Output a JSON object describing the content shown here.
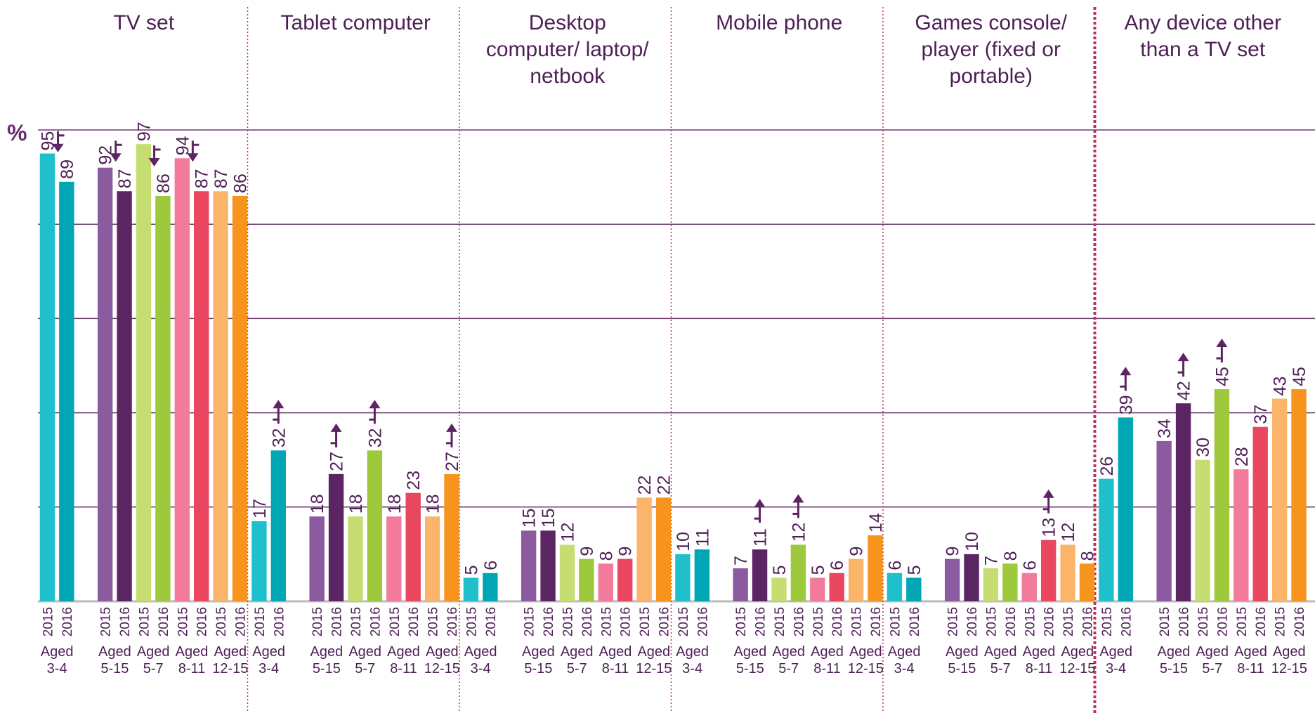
{
  "chart_data": {
    "type": "bar",
    "ylabel": "%",
    "ylim": [
      0,
      100
    ],
    "yticks": [
      0,
      20,
      40,
      60,
      80,
      100
    ],
    "grid": true,
    "years": [
      "2015",
      "2016"
    ],
    "age_groups": [
      {
        "label": "Aged 3-4",
        "colors": [
          "#1fc0cc",
          "#00a6b4"
        ]
      },
      {
        "label": "Aged 5-15",
        "colors": [
          "#8c5a9e",
          "#5b2462"
        ]
      },
      {
        "label": "Aged 5-7",
        "colors": [
          "#c6dd72",
          "#9ec93c"
        ]
      },
      {
        "label": "Aged 8-11",
        "colors": [
          "#f27b9b",
          "#e8475f"
        ]
      },
      {
        "label": "Aged 12-15",
        "colors": [
          "#fbb56b",
          "#f7941e"
        ]
      }
    ],
    "panels": [
      {
        "name": "TV set",
        "values": [
          95,
          89,
          92,
          87,
          97,
          86,
          94,
          87,
          87,
          86
        ],
        "changes": [
          "down",
          "down",
          "down",
          "down",
          null
        ]
      },
      {
        "name": "Tablet computer",
        "values": [
          17,
          32,
          18,
          27,
          18,
          32,
          18,
          23,
          18,
          27
        ],
        "changes": [
          "up",
          "up",
          "up",
          null,
          "up"
        ]
      },
      {
        "name": "Desktop computer/ laptop/ netbook",
        "values": [
          5,
          6,
          15,
          15,
          12,
          9,
          8,
          9,
          22,
          22
        ],
        "changes": [
          null,
          null,
          null,
          null,
          null
        ]
      },
      {
        "name": "Mobile phone",
        "values": [
          10,
          11,
          7,
          11,
          5,
          12,
          5,
          6,
          9,
          14
        ],
        "changes": [
          null,
          "up",
          "up",
          null,
          null
        ]
      },
      {
        "name": "Games console/ player (fixed or portable)",
        "values": [
          6,
          5,
          9,
          10,
          7,
          8,
          6,
          13,
          12,
          8
        ],
        "changes": [
          null,
          null,
          null,
          "up",
          null
        ]
      },
      {
        "name": "Any device other than a TV set",
        "values": [
          26,
          39,
          34,
          42,
          30,
          45,
          28,
          37,
          43,
          45
        ],
        "changes": [
          "up",
          "up",
          "up",
          null,
          null
        ]
      }
    ]
  }
}
